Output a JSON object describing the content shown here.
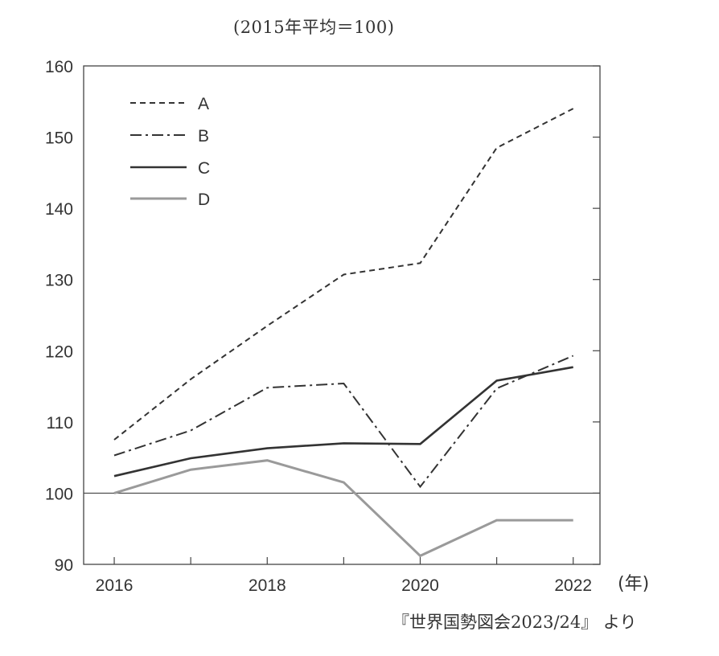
{
  "subtitle": "(2015年平均＝100)",
  "unit_label": "(年)",
  "source_note": "『世界国勢図会2023/24』 より",
  "colors": {
    "ink": "#333333",
    "frame": "#444444",
    "series_D": "#9a9a9a"
  },
  "chart_data": {
    "type": "line",
    "title": "",
    "xlabel": "",
    "ylabel": "",
    "x": [
      2016,
      2017,
      2018,
      2019,
      2020,
      2021,
      2022
    ],
    "xticks": [
      2016,
      2017,
      2018,
      2019,
      2020,
      2021,
      2022
    ],
    "xtick_labels": [
      "2016",
      "",
      "2018",
      "",
      "2020",
      "",
      "2022"
    ],
    "xlim": [
      2015.6,
      2022.35
    ],
    "ylim": [
      90,
      160
    ],
    "yticks": [
      90,
      100,
      110,
      120,
      130,
      140,
      150,
      160
    ],
    "ytick_labels": [
      "90",
      "100",
      "110",
      "120",
      "130",
      "140",
      "150",
      "160"
    ],
    "reference_line": 100,
    "grid": false,
    "legend_position": "top-left",
    "series": [
      {
        "name": "A",
        "style": "dashed",
        "values": [
          107.5,
          116.0,
          123.5,
          130.7,
          132.3,
          148.5,
          154.0
        ]
      },
      {
        "name": "B",
        "style": "dash-dot",
        "values": [
          105.3,
          108.8,
          114.8,
          115.4,
          100.9,
          114.7,
          119.3
        ]
      },
      {
        "name": "C",
        "style": "solid",
        "values": [
          102.4,
          104.9,
          106.3,
          107.0,
          106.9,
          115.8,
          117.7
        ]
      },
      {
        "name": "D",
        "style": "solid-gray",
        "values": [
          100.0,
          103.3,
          104.6,
          101.5,
          91.2,
          96.2,
          96.2
        ]
      }
    ]
  }
}
